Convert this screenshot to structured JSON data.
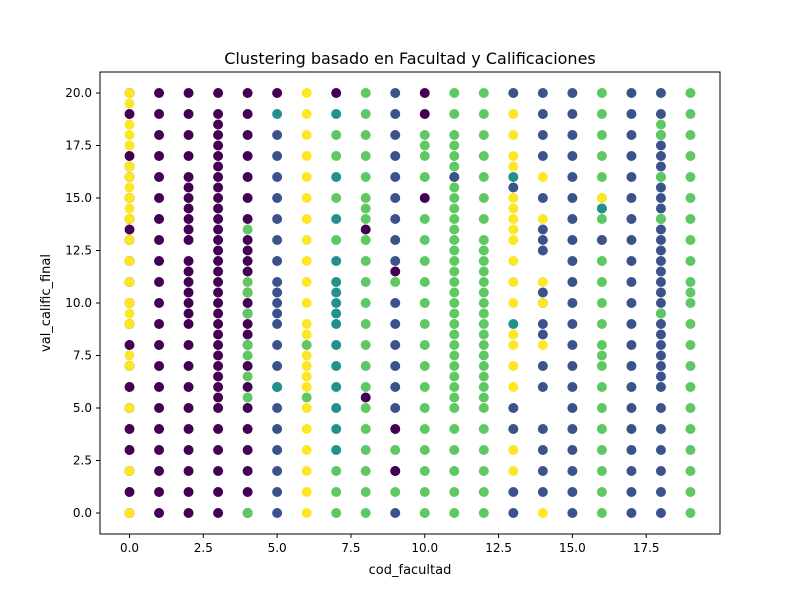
{
  "chart_data": {
    "type": "scatter",
    "title": "Clustering basado en Facultad y Calificaciones",
    "xlabel": "cod_facultad",
    "ylabel": "val_calific_final",
    "xlim": [
      -1.0,
      20.0
    ],
    "ylim": [
      -1.0,
      21.0
    ],
    "x_ticks": [
      0.0,
      2.5,
      5.0,
      7.5,
      10.0,
      12.5,
      15.0,
      17.5
    ],
    "x_tick_labels": [
      "0.0",
      "2.5",
      "5.0",
      "7.5",
      "10.0",
      "12.5",
      "15.0",
      "17.5"
    ],
    "y_ticks": [
      0.0,
      2.5,
      5.0,
      7.5,
      10.0,
      12.5,
      15.0,
      17.5,
      20.0
    ],
    "y_tick_labels": [
      "0.0",
      "2.5",
      "5.0",
      "7.5",
      "10.0",
      "12.5",
      "15.0",
      "17.5",
      "20.0"
    ],
    "grid": false,
    "legend": "none",
    "colormap": "viridis",
    "cluster_colors": [
      "#440154",
      "#3b528b",
      "#21918c",
      "#5ec962",
      "#fde725"
    ],
    "facultades": [
      {
        "x": 0,
        "cluster": 0,
        "values": [
          20,
          19,
          17,
          16.5,
          16,
          15,
          14,
          13.5,
          13,
          12,
          11,
          10,
          9,
          8,
          7,
          6,
          5,
          4,
          3,
          2,
          1,
          0
        ]
      },
      {
        "x": 0,
        "cluster": 4,
        "values": [
          20,
          19.5,
          18.5,
          18,
          17.5,
          16.5,
          16,
          15.5,
          15,
          14.5,
          14,
          13,
          12,
          11,
          10,
          9.5,
          9,
          7.5,
          7,
          5,
          2,
          0
        ]
      },
      {
        "x": 1,
        "cluster": 0,
        "values": [
          20,
          19,
          18,
          17,
          16,
          15,
          14,
          13,
          12,
          11,
          10,
          9,
          8,
          7,
          6,
          5,
          4,
          3,
          2,
          1,
          0
        ]
      },
      {
        "x": 2,
        "cluster": 0,
        "values": [
          20,
          19,
          18,
          17,
          16,
          15.5,
          15,
          14.5,
          14,
          13.5,
          13,
          12,
          11.5,
          11,
          10.5,
          10,
          9.5,
          9,
          8,
          7,
          6,
          5,
          4,
          3,
          2,
          1,
          0
        ]
      },
      {
        "x": 3,
        "cluster": 0,
        "values": [
          20,
          19,
          18.5,
          18,
          17.5,
          17,
          16.5,
          16,
          15.5,
          15,
          14.5,
          14,
          13.5,
          13,
          12.5,
          12,
          11.5,
          11,
          10.5,
          10,
          9.5,
          9,
          8.5,
          8,
          7.5,
          7,
          6.5,
          6,
          5.5,
          5,
          4,
          3,
          2,
          1,
          0
        ]
      },
      {
        "x": 4,
        "cluster": 0,
        "values": [
          20,
          19,
          18,
          17,
          16,
          15,
          14,
          13,
          12.5,
          12,
          11.5,
          10.5,
          10,
          9.5,
          9,
          8.5,
          8,
          7,
          6,
          5,
          4,
          3,
          2,
          1,
          0
        ]
      },
      {
        "x": 4,
        "cluster": 3,
        "values": [
          13.5,
          11,
          10.5,
          9.5,
          8,
          7.5,
          6.5,
          5.5,
          0
        ]
      },
      {
        "x": 5,
        "cluster": 0,
        "values": [
          20
        ]
      },
      {
        "x": 5,
        "cluster": 1,
        "values": [
          18,
          17,
          16,
          15,
          14,
          13,
          12,
          11,
          10.5,
          10,
          9.5,
          9,
          8,
          7,
          6,
          5,
          4,
          3,
          2,
          1,
          0
        ]
      },
      {
        "x": 5,
        "cluster": 2,
        "values": [
          19,
          6
        ]
      },
      {
        "x": 6,
        "cluster": 4,
        "values": [
          20,
          19,
          18,
          17,
          16,
          15,
          14,
          13,
          12,
          11,
          10,
          9,
          8.5,
          8,
          7.5,
          7,
          6.5,
          6,
          5,
          4,
          3,
          2,
          1,
          0
        ]
      },
      {
        "x": 6,
        "cluster": 3,
        "values": [
          8,
          5.5
        ]
      },
      {
        "x": 7,
        "cluster": 0,
        "values": [
          20
        ]
      },
      {
        "x": 7,
        "cluster": 2,
        "values": [
          19,
          16,
          14,
          12,
          11,
          10.5,
          10,
          9.5,
          9,
          8,
          7,
          6,
          5,
          4,
          3
        ]
      },
      {
        "x": 7,
        "cluster": 3,
        "values": [
          18,
          17,
          15,
          13,
          2,
          1,
          0
        ]
      },
      {
        "x": 8,
        "cluster": 3,
        "values": [
          20,
          19,
          18,
          17,
          16,
          15,
          14.5,
          14,
          13,
          12,
          11,
          10,
          9,
          8,
          7,
          6,
          5,
          4,
          3,
          2,
          1,
          0
        ]
      },
      {
        "x": 8,
        "cluster": 0,
        "values": [
          13.5,
          5.5
        ]
      },
      {
        "x": 9,
        "cluster": 1,
        "values": [
          20,
          19,
          18,
          17,
          16,
          15,
          14,
          13,
          12,
          10,
          9,
          8,
          7,
          6,
          5,
          2,
          0
        ]
      },
      {
        "x": 9,
        "cluster": 3,
        "values": [
          11,
          3,
          1
        ]
      },
      {
        "x": 9,
        "cluster": 0,
        "values": [
          11.5,
          4,
          2
        ]
      },
      {
        "x": 10,
        "cluster": 0,
        "values": [
          20,
          19,
          15
        ]
      },
      {
        "x": 10,
        "cluster": 3,
        "values": [
          18,
          17.5,
          17,
          16,
          14,
          13,
          12,
          11,
          10,
          9,
          8,
          7,
          6,
          5,
          4,
          3,
          2,
          1,
          0
        ]
      },
      {
        "x": 11,
        "cluster": 3,
        "values": [
          20,
          19,
          18,
          17.5,
          17,
          16.5,
          16,
          15.5,
          15,
          14.5,
          14,
          13.5,
          13,
          12.5,
          12,
          11.5,
          11,
          10.5,
          10,
          9.5,
          9,
          8.5,
          8,
          7.5,
          7,
          6.5,
          6,
          5.5,
          5,
          4,
          3,
          2,
          1,
          0
        ]
      },
      {
        "x": 11,
        "cluster": 1,
        "values": [
          16
        ]
      },
      {
        "x": 12,
        "cluster": 3,
        "values": [
          20,
          19,
          18,
          17,
          16,
          15,
          14,
          13,
          12.5,
          12,
          11.5,
          11,
          10.5,
          10,
          9.5,
          9,
          8.5,
          8,
          7.5,
          7,
          6.5,
          6,
          5.5,
          5,
          4,
          3,
          2,
          1,
          0
        ]
      },
      {
        "x": 13,
        "cluster": 4,
        "values": [
          19,
          18,
          17,
          16.5,
          15,
          14.5,
          14,
          13.5,
          13,
          12,
          11,
          10,
          8.5,
          8,
          7,
          6,
          3,
          2
        ]
      },
      {
        "x": 13,
        "cluster": 1,
        "values": [
          20,
          15.5,
          5,
          4,
          1,
          0
        ]
      },
      {
        "x": 13,
        "cluster": 2,
        "values": [
          16,
          9
        ]
      },
      {
        "x": 14,
        "cluster": 1,
        "values": [
          20,
          19,
          18,
          17,
          15,
          13.5,
          13,
          12.5,
          10.5,
          10,
          9,
          8.5,
          7,
          6,
          4,
          3,
          2,
          1
        ]
      },
      {
        "x": 14,
        "cluster": 4,
        "values": [
          16,
          14,
          11,
          10,
          8,
          0
        ]
      },
      {
        "x": 15,
        "cluster": 1,
        "values": [
          20,
          19,
          18,
          17,
          16,
          15,
          14,
          13,
          12,
          11,
          10,
          9,
          8,
          7,
          6,
          5,
          4,
          3,
          2,
          1,
          0
        ]
      },
      {
        "x": 16,
        "cluster": 3,
        "values": [
          20,
          19,
          18,
          17,
          16,
          15,
          14.5,
          14,
          13,
          12,
          11,
          10,
          9,
          8,
          7.5,
          7,
          6,
          5,
          4,
          3,
          2,
          1,
          0
        ]
      },
      {
        "x": 16,
        "cluster": 4,
        "values": [
          15
        ]
      },
      {
        "x": 16,
        "cluster": 2,
        "values": [
          14.5
        ]
      },
      {
        "x": 16,
        "cluster": 1,
        "values": [
          13
        ]
      },
      {
        "x": 17,
        "cluster": 1,
        "values": [
          20,
          19,
          18,
          17,
          16,
          15,
          14,
          13,
          12,
          11,
          10,
          9,
          8,
          7,
          6,
          5,
          4,
          3,
          2,
          1,
          0
        ]
      },
      {
        "x": 18,
        "cluster": 1,
        "values": [
          20,
          19,
          18,
          17.5,
          17,
          16.5,
          16,
          15.5,
          15,
          14.5,
          14,
          13.5,
          13,
          12.5,
          12,
          11.5,
          11,
          10.5,
          10,
          9.5,
          9,
          8.5,
          8,
          7.5,
          7,
          6.5,
          6,
          5,
          4,
          3,
          2,
          1,
          0
        ]
      },
      {
        "x": 18,
        "cluster": 3,
        "values": [
          18.5,
          18,
          16,
          14,
          9.5
        ]
      },
      {
        "x": 19,
        "cluster": 3,
        "values": [
          20,
          19,
          18,
          17,
          16,
          15,
          14,
          13,
          12,
          11,
          10.5,
          10,
          9,
          8,
          7,
          6,
          5,
          4,
          3,
          2,
          1,
          0
        ]
      }
    ]
  }
}
